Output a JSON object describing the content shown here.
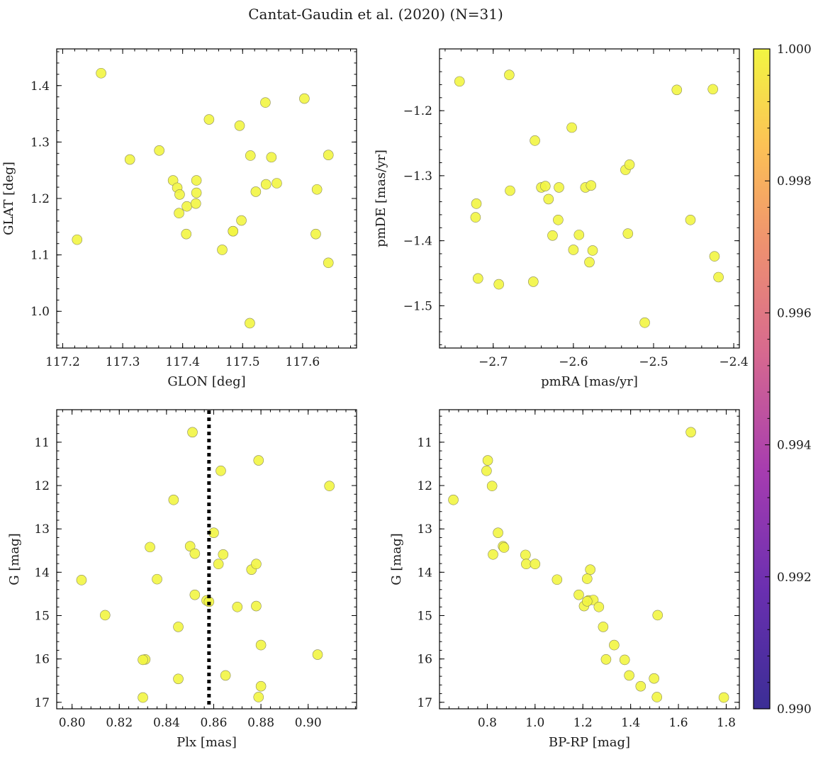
{
  "figure": {
    "title": "Cantat-Gaudin et al. (2020) (N=31)"
  },
  "colorbar": {
    "min": 0.99,
    "max": 1.0,
    "ticks": [
      "0.990",
      "0.992",
      "0.994",
      "0.996",
      "0.998",
      "1.000"
    ],
    "point_color": "#f2f542"
  },
  "chart_data": [
    {
      "type": "scatter",
      "xlabel": "GLON [deg]",
      "ylabel": "GLAT [deg]",
      "xlim": [
        117.19,
        117.69
      ],
      "ylim": [
        0.935,
        1.465
      ],
      "xticks": [
        {
          "v": 117.2,
          "label": "117.2"
        },
        {
          "v": 117.3,
          "label": "117.3"
        },
        {
          "v": 117.4,
          "label": "117.4"
        },
        {
          "v": 117.5,
          "label": "117.5"
        },
        {
          "v": 117.6,
          "label": "117.6"
        }
      ],
      "yticks": [
        {
          "v": 1.0,
          "label": "1.0"
        },
        {
          "v": 1.1,
          "label": "1.1"
        },
        {
          "v": 1.2,
          "label": "1.2"
        },
        {
          "v": 1.3,
          "label": "1.3"
        },
        {
          "v": 1.4,
          "label": "1.4"
        }
      ],
      "x": [
        117.264,
        117.224,
        117.312,
        117.361,
        117.384,
        117.391,
        117.395,
        117.394,
        117.407,
        117.406,
        117.423,
        117.423,
        117.422,
        117.444,
        117.466,
        117.484,
        117.484,
        117.495,
        117.498,
        117.513,
        117.512,
        117.522,
        117.538,
        117.539,
        117.548,
        117.557,
        117.603,
        117.622,
        117.624,
        117.643,
        117.643
      ],
      "y": [
        1.422,
        1.127,
        1.269,
        1.285,
        1.232,
        1.219,
        1.207,
        1.174,
        1.186,
        1.137,
        1.232,
        1.21,
        1.191,
        1.34,
        1.109,
        1.142,
        1.142,
        1.329,
        1.161,
        1.276,
        0.979,
        1.212,
        1.37,
        1.225,
        1.273,
        1.227,
        1.377,
        1.137,
        1.216,
        1.277,
        1.086
      ]
    },
    {
      "type": "scatter",
      "xlabel": "pmRA [mas/yr]",
      "ylabel": "pmDE [mas/yr]",
      "xlim": [
        -2.767,
        -2.393
      ],
      "ylim": [
        -1.565,
        -1.105
      ],
      "xticks": [
        {
          "v": -2.7,
          "label": "−2.7"
        },
        {
          "v": -2.6,
          "label": "−2.6"
        },
        {
          "v": -2.5,
          "label": "−2.5"
        },
        {
          "v": -2.4,
          "label": "−2.4"
        }
      ],
      "yticks": [
        {
          "v": -1.2,
          "label": "−1.2"
        },
        {
          "v": -1.3,
          "label": "−1.3"
        },
        {
          "v": -1.4,
          "label": "−1.4"
        },
        {
          "v": -1.5,
          "label": "−1.5"
        }
      ],
      "x": [
        -2.742,
        -2.68,
        -2.721,
        -2.722,
        -2.719,
        -2.693,
        -2.65,
        -2.679,
        -2.648,
        -2.64,
        -2.635,
        -2.631,
        -2.626,
        -2.619,
        -2.618,
        -2.602,
        -2.6,
        -2.593,
        -2.585,
        -2.58,
        -2.578,
        -2.576,
        -2.535,
        -2.532,
        -2.53,
        -2.511,
        -2.471,
        -2.454,
        -2.426,
        -2.424,
        -2.419
      ],
      "y": [
        -1.155,
        -1.145,
        -1.343,
        -1.364,
        -1.458,
        -1.467,
        -1.463,
        -1.323,
        -1.246,
        -1.318,
        -1.316,
        -1.336,
        -1.392,
        -1.368,
        -1.318,
        -1.226,
        -1.414,
        -1.391,
        -1.318,
        -1.433,
        -1.315,
        -1.415,
        -1.291,
        -1.389,
        -1.283,
        -1.526,
        -1.168,
        -1.368,
        -1.167,
        -1.424,
        -1.456
      ]
    },
    {
      "type": "scatter",
      "xlabel": "Plx [mas]",
      "ylabel": "G [mag]",
      "y_inverted": true,
      "xlim": [
        0.7935,
        0.9205
      ],
      "ylim": [
        10.25,
        17.15
      ],
      "vline": {
        "x": 0.858,
        "style": "dotted",
        "color": "#000000"
      },
      "xticks": [
        {
          "v": 0.8,
          "label": "0.80"
        },
        {
          "v": 0.82,
          "label": "0.82"
        },
        {
          "v": 0.84,
          "label": "0.84"
        },
        {
          "v": 0.86,
          "label": "0.86"
        },
        {
          "v": 0.88,
          "label": "0.88"
        },
        {
          "v": 0.9,
          "label": "0.90"
        }
      ],
      "yticks": [
        {
          "v": 11,
          "label": "11"
        },
        {
          "v": 12,
          "label": "12"
        },
        {
          "v": 13,
          "label": "13"
        },
        {
          "v": 14,
          "label": "14"
        },
        {
          "v": 15,
          "label": "15"
        },
        {
          "v": 16,
          "label": "16"
        },
        {
          "v": 17,
          "label": "17"
        }
      ],
      "x": [
        0.851,
        0.879,
        0.863,
        0.909,
        0.843,
        0.86,
        0.833,
        0.85,
        0.852,
        0.864,
        0.862,
        0.876,
        0.878,
        0.836,
        0.804,
        0.852,
        0.857,
        0.858,
        0.87,
        0.878,
        0.814,
        0.845,
        0.88,
        0.904,
        0.831,
        0.83,
        0.865,
        0.845,
        0.88,
        0.83,
        0.879
      ],
      "y": [
        10.77,
        11.42,
        11.66,
        12.01,
        12.33,
        13.09,
        13.42,
        13.4,
        13.57,
        13.59,
        13.81,
        13.94,
        13.81,
        14.16,
        14.18,
        14.52,
        14.65,
        14.68,
        14.8,
        14.78,
        14.99,
        15.26,
        15.68,
        15.9,
        16.01,
        16.02,
        16.38,
        16.46,
        16.63,
        16.89,
        16.88
      ]
    },
    {
      "type": "scatter",
      "xlabel": "BP-RP [mag]",
      "ylabel": "G [mag]",
      "y_inverted": true,
      "xlim": [
        0.6,
        1.855
      ],
      "ylim": [
        10.25,
        17.15
      ],
      "xticks": [
        {
          "v": 0.8,
          "label": "0.8"
        },
        {
          "v": 1.0,
          "label": "1.0"
        },
        {
          "v": 1.2,
          "label": "1.2"
        },
        {
          "v": 1.4,
          "label": "1.4"
        },
        {
          "v": 1.6,
          "label": "1.6"
        },
        {
          "v": 1.8,
          "label": "1.8"
        }
      ],
      "yticks": [
        {
          "v": 11,
          "label": "11"
        },
        {
          "v": 12,
          "label": "12"
        },
        {
          "v": 13,
          "label": "13"
        },
        {
          "v": 14,
          "label": "14"
        },
        {
          "v": 15,
          "label": "15"
        },
        {
          "v": 16,
          "label": "16"
        },
        {
          "v": 17,
          "label": "17"
        }
      ],
      "x": [
        1.652,
        0.802,
        0.797,
        0.82,
        0.658,
        0.845,
        0.866,
        0.87,
        0.824,
        0.96,
        0.963,
        1.0,
        1.231,
        1.218,
        1.092,
        1.183,
        1.224,
        1.244,
        1.205,
        1.267,
        1.513,
        1.285,
        1.331,
        1.498,
        1.297,
        1.375,
        1.394,
        1.442,
        1.51,
        1.79,
        1.218
      ],
      "y": [
        10.77,
        11.42,
        11.66,
        12.01,
        12.33,
        13.09,
        13.4,
        13.43,
        13.59,
        13.6,
        13.81,
        13.81,
        13.94,
        14.15,
        14.17,
        14.52,
        14.65,
        14.64,
        14.78,
        14.8,
        14.99,
        15.26,
        15.68,
        16.45,
        16.01,
        16.02,
        16.38,
        16.63,
        16.88,
        16.89,
        14.67
      ]
    }
  ]
}
